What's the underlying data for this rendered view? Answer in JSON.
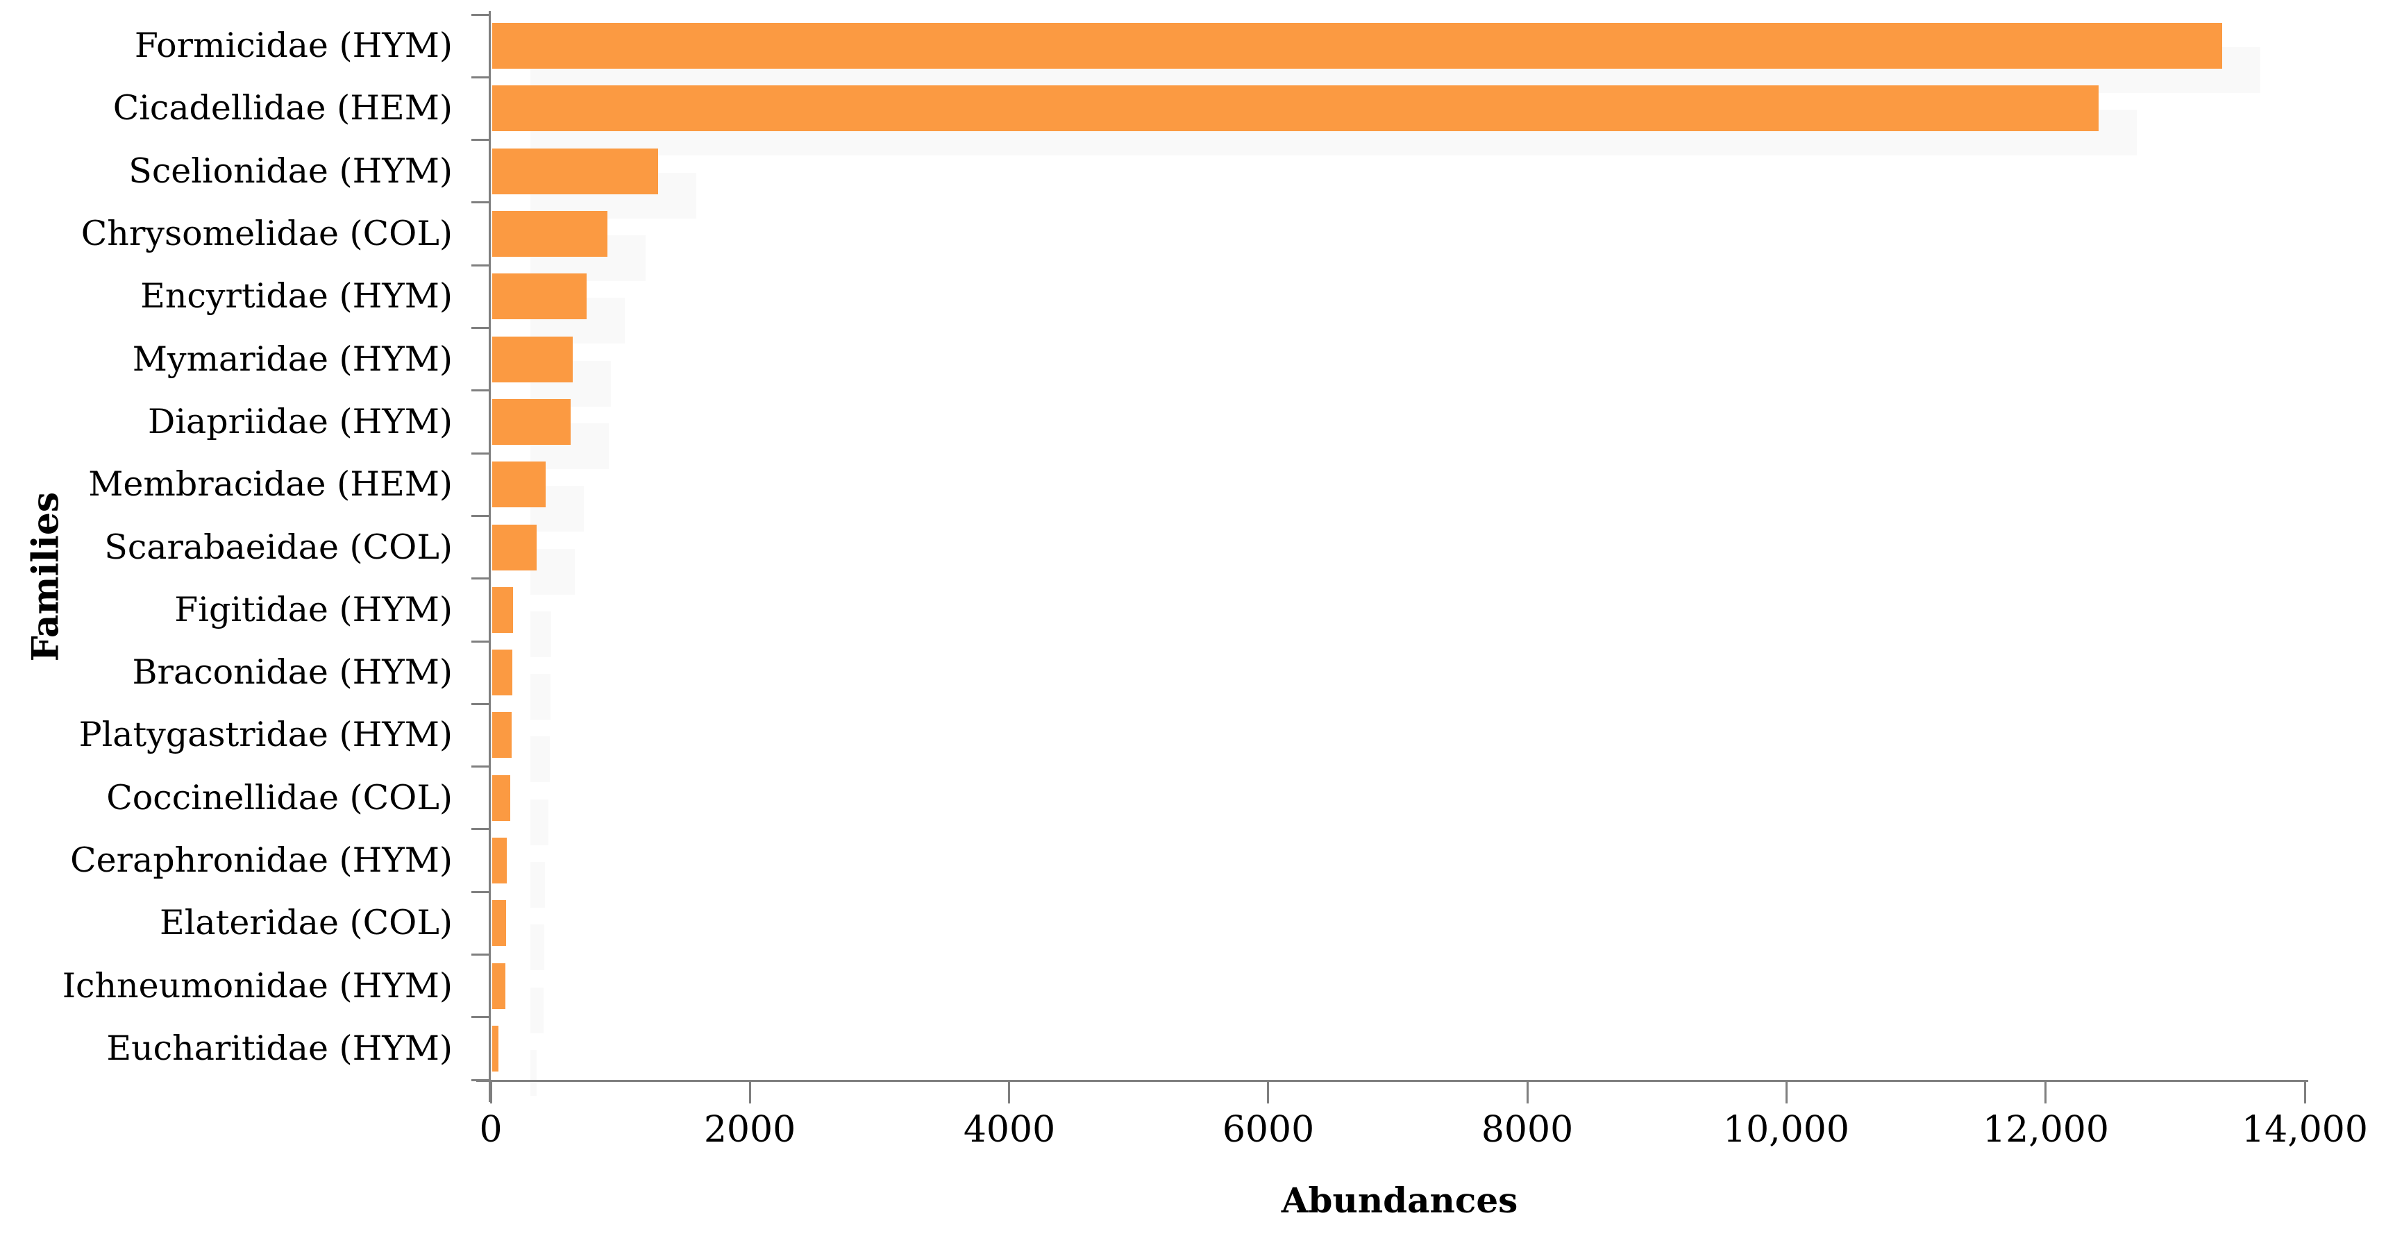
{
  "figure": {
    "background": "#FFFFFF"
  },
  "chart_data": {
    "type": "bar",
    "orientation": "horizontal",
    "title": "",
    "xlabel": "Abundances",
    "ylabel": "Families",
    "xlim": [
      0,
      14000
    ],
    "x_ticks": [
      0,
      2000,
      4000,
      6000,
      8000,
      10000,
      12000,
      14000
    ],
    "x_tick_labels": [
      "0",
      "2000",
      "4000",
      "6000",
      "8000",
      "10,000",
      "12,000",
      "14,000"
    ],
    "categories": [
      "Formicidae (HYM)",
      "Cicadellidae (HEM)",
      "Scelionidae (HYM)",
      "Chrysomelidae (COL)",
      "Encyrtidae (HYM)",
      "Mymaridae (HYM)",
      "Diapriidae (HYM)",
      "Membracidae (HEM)",
      "Scarabaeidae (COL)",
      "Figitidae (HYM)",
      "Braconidae (HYM)",
      "Platygastridae (HYM)",
      "Coccinellidae (COL)",
      "Ceraphronidae (HYM)",
      "Elateridae (COL)",
      "Ichneumonidae (HYM)",
      "Eucharitidae (HYM)"
    ],
    "values": [
      13350,
      12400,
      1280,
      890,
      730,
      620,
      605,
      415,
      345,
      160,
      155,
      150,
      140,
      115,
      105,
      100,
      50
    ],
    "bar_color": "#FB9A42",
    "axis_color": "#7F7F7F",
    "text_color": "#000000",
    "grid": false,
    "legend": null,
    "sort_order": "descending"
  }
}
